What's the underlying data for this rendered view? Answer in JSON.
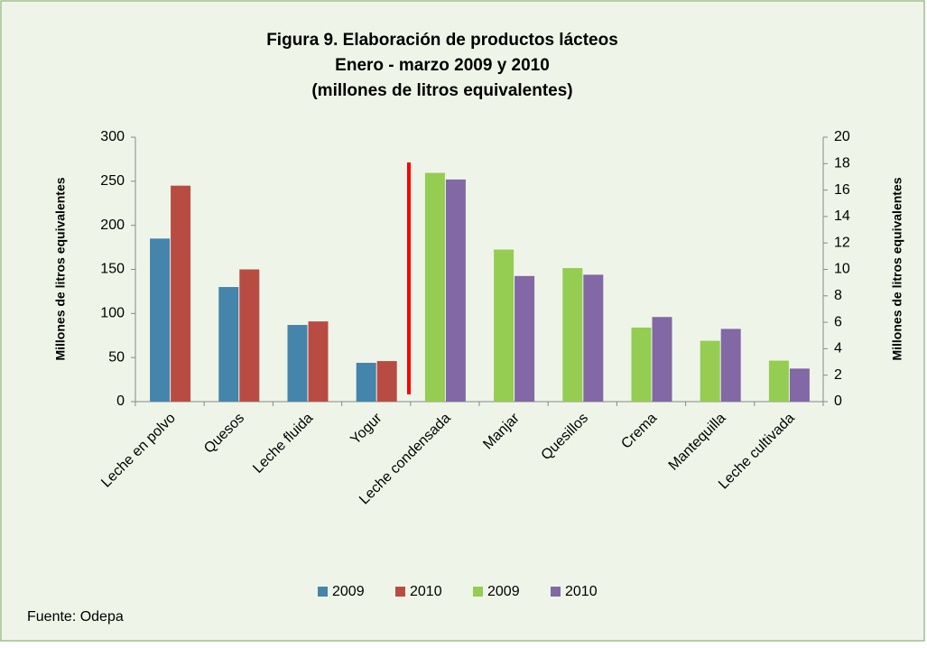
{
  "chart_data": {
    "type": "bar",
    "title": "Figura 9. Elaboración de productos lácteos",
    "subtitle": "Enero - marzo 2009 y 2010",
    "unit_note": "(millones de litros equivalentes)",
    "y_label": "Millones de litros equivalentes",
    "y2_label": "Millones de litros equivalentes",
    "source": "Fuente: Odepa",
    "categories": [
      "Leche en polvo",
      "Quesos",
      "Leche fluida",
      "Yogur",
      "Leche condensada",
      "Manjar",
      "Quesillos",
      "Crema",
      "Mantequilla",
      "Leche cultivada"
    ],
    "series": [
      {
        "name": "2009",
        "color": "#4584ab",
        "axis": "y",
        "values": [
          185,
          130,
          87,
          44,
          null,
          null,
          null,
          null,
          null,
          null
        ]
      },
      {
        "name": "2010",
        "color": "#b94c42",
        "axis": "y",
        "values": [
          245,
          150,
          91,
          46,
          null,
          null,
          null,
          null,
          null,
          null
        ]
      },
      {
        "name": "2009",
        "color": "#94cd52",
        "axis": "y2",
        "values": [
          null,
          null,
          null,
          null,
          17.3,
          11.5,
          10.1,
          5.6,
          4.6,
          3.1
        ]
      },
      {
        "name": "2010",
        "color": "#8268a4",
        "axis": "y2",
        "values": [
          null,
          null,
          null,
          null,
          16.8,
          9.5,
          9.6,
          6.4,
          5.5,
          2.5
        ]
      }
    ],
    "ylim": [
      0,
      300
    ],
    "yticks": [
      0,
      50,
      100,
      150,
      200,
      250,
      300
    ],
    "y2lim": [
      0,
      20
    ],
    "y2ticks": [
      0,
      2,
      4,
      6,
      8,
      10,
      12,
      14,
      16,
      18,
      20
    ],
    "grid": false,
    "legend": "bottom"
  }
}
